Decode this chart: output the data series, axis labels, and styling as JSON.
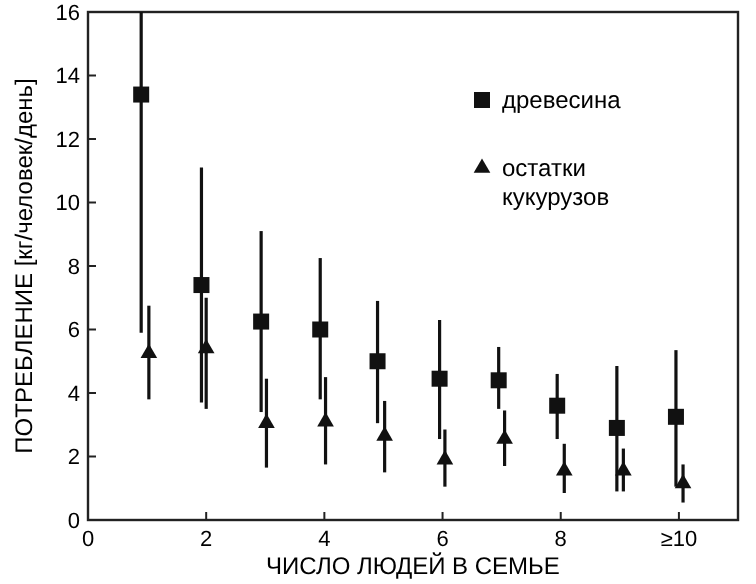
{
  "chart_data": {
    "type": "scatter",
    "xlabel": "ЧИСЛО ЛЮДЕЙ В СЕМЬЕ",
    "ylabel": "ПОТРЕБЛЕНИЕ [кг/человек/день]",
    "xlim": [
      0,
      11
    ],
    "xticks": [
      0,
      2,
      4,
      6,
      8,
      {
        "value": 10,
        "label": "≥10"
      }
    ],
    "ylim": [
      0,
      16
    ],
    "yticks": [
      0,
      2,
      4,
      6,
      8,
      10,
      12,
      14,
      16
    ],
    "grid": false,
    "legend": "top right",
    "series": [
      {
        "name": "древесина",
        "color": "#111111",
        "marker": "square",
        "x": [
          0.9,
          1.92,
          2.93,
          3.93,
          4.9,
          5.95,
          6.95,
          7.94,
          8.95,
          9.95
        ],
        "values": [
          13.4,
          7.4,
          6.25,
          6.0,
          5.0,
          4.45,
          4.4,
          3.6,
          2.9,
          3.25
        ],
        "errors": [
          [
            5.9,
            16
          ],
          [
            3.7,
            11.1
          ],
          [
            3.4,
            9.1
          ],
          [
            3.8,
            8.25
          ],
          [
            3.05,
            6.9
          ],
          [
            2.55,
            6.3
          ],
          [
            3.5,
            5.45
          ],
          [
            2.55,
            4.6
          ],
          [
            0.9,
            4.85
          ],
          [
            1.05,
            5.35
          ]
        ]
      },
      {
        "name": "остатки кукурузов",
        "color": "#111111",
        "marker": "triangle",
        "x": [
          1.03,
          2.0,
          3.02,
          4.02,
          5.02,
          6.04,
          7.05,
          8.06,
          9.06,
          10.07
        ],
        "values": [
          5.25,
          5.4,
          3.05,
          3.1,
          2.65,
          1.9,
          2.55,
          1.55,
          1.55,
          1.15
        ],
        "errors": [
          [
            3.8,
            6.75
          ],
          [
            3.5,
            7.0
          ],
          [
            1.65,
            4.45
          ],
          [
            1.75,
            4.5
          ],
          [
            1.5,
            3.75
          ],
          [
            1.05,
            2.85
          ],
          [
            1.7,
            3.45
          ],
          [
            0.85,
            2.4
          ],
          [
            0.9,
            2.25
          ],
          [
            0.55,
            1.75
          ]
        ]
      }
    ]
  }
}
